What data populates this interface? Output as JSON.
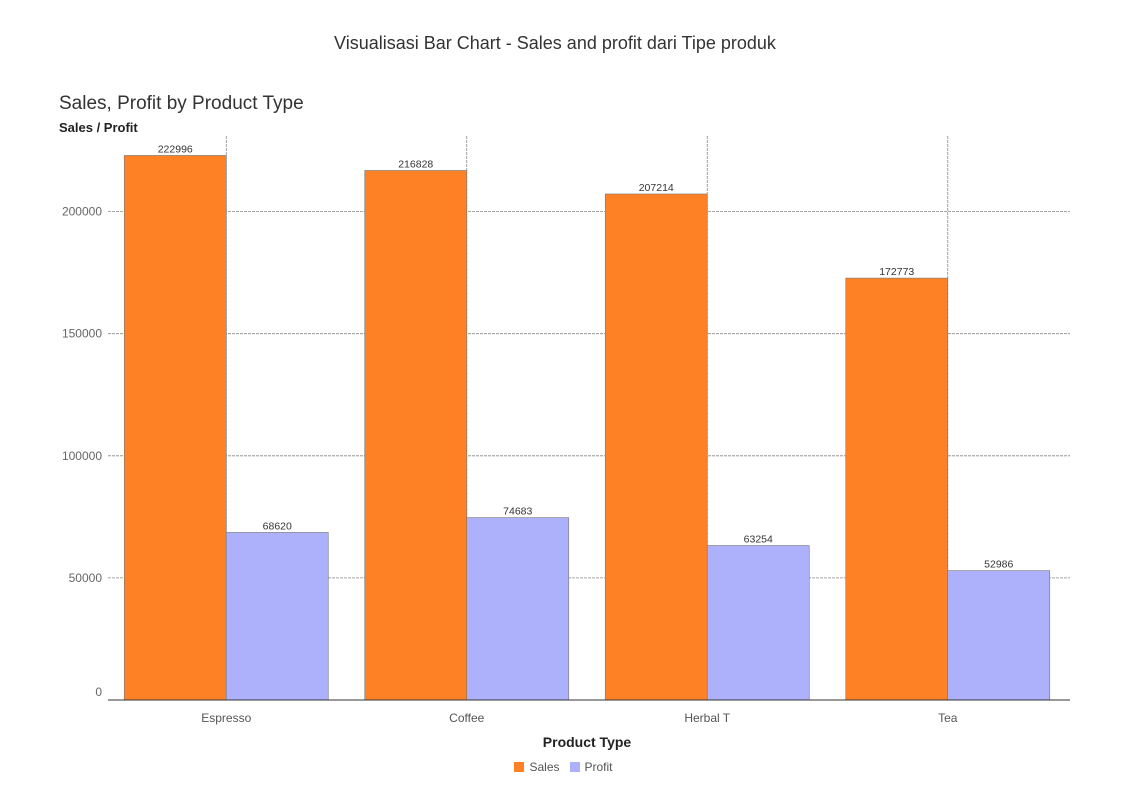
{
  "page": {
    "title": "Visualisasi Bar Chart - Sales and profit dari Tipe produk"
  },
  "chart_data": {
    "type": "bar",
    "title": "Sales, Profit by Product Type",
    "xlabel": "Product Type",
    "ylabel": "Sales / Profit",
    "categories": [
      "Espresso",
      "Coffee",
      "Herbal T",
      "Tea"
    ],
    "series": [
      {
        "name": "Sales",
        "values": [
          222996,
          216828,
          207214,
          172773
        ],
        "color": "#ff8125"
      },
      {
        "name": "Profit",
        "values": [
          68620,
          74683,
          63254,
          52986
        ],
        "color": "#adb0fb"
      }
    ],
    "ylim": [
      0,
      230000
    ],
    "yticks": [
      0,
      50000,
      100000,
      150000,
      200000
    ],
    "grid": true,
    "data_labels": true,
    "legend_position": "bottom"
  }
}
